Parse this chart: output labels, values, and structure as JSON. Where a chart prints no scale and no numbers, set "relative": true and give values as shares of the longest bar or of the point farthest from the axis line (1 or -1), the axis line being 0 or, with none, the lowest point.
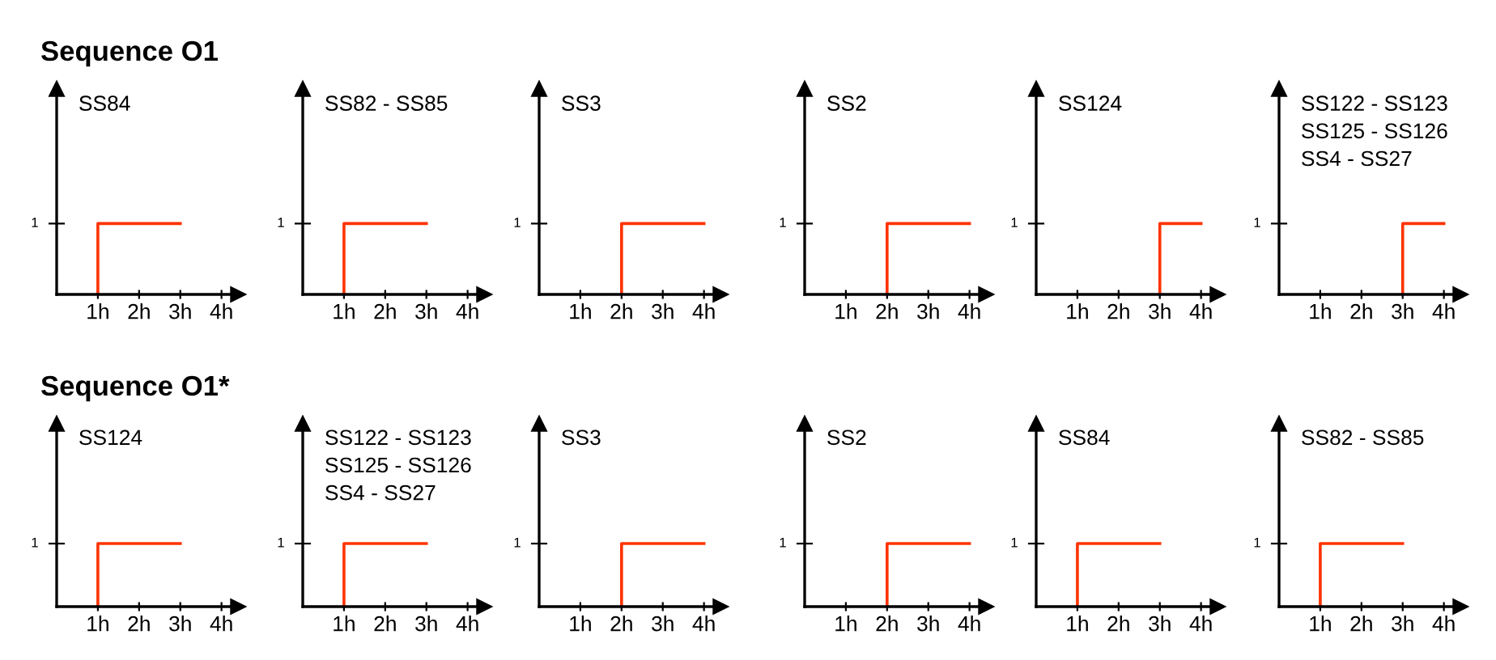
{
  "chart_data": [
    {
      "type": "line",
      "relative": true,
      "title": "SS84",
      "annotations": [
        "1",
        "Sequence O1"
      ],
      "xlim": [
        0,
        4.4
      ],
      "xticks": [
        {
          "value": 1,
          "label": "1h"
        },
        {
          "value": 2,
          "label": "2h"
        },
        {
          "value": 3,
          "label": "3h"
        },
        {
          "value": 4,
          "label": "4h"
        }
      ],
      "series": [
        {
          "color": "#ff3300",
          "x": [
            1,
            1,
            3
          ],
          "values": [
            0,
            1,
            1
          ]
        }
      ]
    },
    {
      "type": "line",
      "relative": true,
      "title": "SS82 - SS85",
      "annotations": [
        "1"
      ],
      "xlim": [
        0,
        4.4
      ],
      "xticks": [
        {
          "value": 1,
          "label": "1h"
        },
        {
          "value": 2,
          "label": "2h"
        },
        {
          "value": 3,
          "label": "3h"
        },
        {
          "value": 4,
          "label": "4h"
        }
      ],
      "series": [
        {
          "color": "#ff3300",
          "x": [
            1,
            1,
            3
          ],
          "values": [
            0,
            1,
            1
          ]
        }
      ]
    },
    {
      "type": "line",
      "relative": true,
      "title": "SS3",
      "annotations": [
        "1"
      ],
      "xlim": [
        0,
        4.4
      ],
      "xticks": [
        {
          "value": 1,
          "label": "1h"
        },
        {
          "value": 2,
          "label": "2h"
        },
        {
          "value": 3,
          "label": "3h"
        },
        {
          "value": 4,
          "label": "4h"
        }
      ],
      "series": [
        {
          "color": "#ff3300",
          "x": [
            2,
            2,
            4
          ],
          "values": [
            0,
            1,
            1
          ]
        }
      ]
    },
    {
      "type": "line",
      "relative": true,
      "title": "SS2",
      "annotations": [
        "1"
      ],
      "xlim": [
        0,
        4.4
      ],
      "xticks": [
        {
          "value": 1,
          "label": "1h"
        },
        {
          "value": 2,
          "label": "2h"
        },
        {
          "value": 3,
          "label": "3h"
        },
        {
          "value": 4,
          "label": "4h"
        }
      ],
      "series": [
        {
          "color": "#ff3300",
          "x": [
            2,
            2,
            4
          ],
          "values": [
            0,
            1,
            1
          ]
        }
      ]
    },
    {
      "type": "line",
      "relative": true,
      "title": "SS124",
      "annotations": [
        "1"
      ],
      "xlim": [
        0,
        4.4
      ],
      "xticks": [
        {
          "value": 1,
          "label": "1h"
        },
        {
          "value": 2,
          "label": "2h"
        },
        {
          "value": 3,
          "label": "3h"
        },
        {
          "value": 4,
          "label": "4h"
        }
      ],
      "series": [
        {
          "color": "#ff3300",
          "x": [
            3,
            3,
            4
          ],
          "values": [
            0,
            1,
            1
          ]
        }
      ]
    },
    {
      "type": "line",
      "relative": true,
      "title": "SS122 - SS123\nSS125 - SS126\nSS4 - SS27",
      "annotations": [
        "1"
      ],
      "xlim": [
        0,
        4.4
      ],
      "xticks": [
        {
          "value": 1,
          "label": "1h"
        },
        {
          "value": 2,
          "label": "2h"
        },
        {
          "value": 3,
          "label": "3h"
        },
        {
          "value": 4,
          "label": "4h"
        }
      ],
      "series": [
        {
          "color": "#ff3300",
          "x": [
            3,
            3,
            4
          ],
          "values": [
            0,
            1,
            1
          ]
        }
      ]
    },
    {
      "type": "line",
      "relative": true,
      "title": "SS124",
      "annotations": [
        "1",
        "Sequence O1*"
      ],
      "xlim": [
        0,
        4.4
      ],
      "xticks": [
        {
          "value": 1,
          "label": "1h"
        },
        {
          "value": 2,
          "label": "2h"
        },
        {
          "value": 3,
          "label": "3h"
        },
        {
          "value": 4,
          "label": "4h"
        }
      ],
      "series": [
        {
          "color": "#ff3300",
          "x": [
            1,
            1,
            3
          ],
          "values": [
            0,
            1,
            1
          ]
        }
      ]
    },
    {
      "type": "line",
      "relative": true,
      "title": "SS122 - SS123\nSS125 - SS126\nSS4 - SS27",
      "annotations": [
        "1"
      ],
      "xlim": [
        0,
        4.4
      ],
      "xticks": [
        {
          "value": 1,
          "label": "1h"
        },
        {
          "value": 2,
          "label": "2h"
        },
        {
          "value": 3,
          "label": "3h"
        },
        {
          "value": 4,
          "label": "4h"
        }
      ],
      "series": [
        {
          "color": "#ff3300",
          "x": [
            1,
            1,
            3
          ],
          "values": [
            0,
            1,
            1
          ]
        }
      ]
    },
    {
      "type": "line",
      "relative": true,
      "title": "SS3",
      "annotations": [
        "1"
      ],
      "xlim": [
        0,
        4.4
      ],
      "xticks": [
        {
          "value": 1,
          "label": "1h"
        },
        {
          "value": 2,
          "label": "2h"
        },
        {
          "value": 3,
          "label": "3h"
        },
        {
          "value": 4,
          "label": "4h"
        }
      ],
      "series": [
        {
          "color": "#ff3300",
          "x": [
            2,
            2,
            4
          ],
          "values": [
            0,
            1,
            1
          ]
        }
      ]
    },
    {
      "type": "line",
      "relative": true,
      "title": "SS2",
      "annotations": [
        "1"
      ],
      "xlim": [
        0,
        4.4
      ],
      "xticks": [
        {
          "value": 1,
          "label": "1h"
        },
        {
          "value": 2,
          "label": "2h"
        },
        {
          "value": 3,
          "label": "3h"
        },
        {
          "value": 4,
          "label": "4h"
        }
      ],
      "series": [
        {
          "color": "#ff3300",
          "x": [
            2,
            2,
            4
          ],
          "values": [
            0,
            1,
            1
          ]
        }
      ]
    },
    {
      "type": "line",
      "relative": true,
      "title": "SS84",
      "annotations": [
        "1"
      ],
      "xlim": [
        0,
        4.4
      ],
      "xticks": [
        {
          "value": 1,
          "label": "1h"
        },
        {
          "value": 2,
          "label": "2h"
        },
        {
          "value": 3,
          "label": "3h"
        },
        {
          "value": 4,
          "label": "4h"
        }
      ],
      "series": [
        {
          "color": "#ff3300",
          "x": [
            1,
            1,
            3
          ],
          "values": [
            0,
            1,
            1
          ]
        }
      ]
    },
    {
      "type": "line",
      "relative": true,
      "title": "SS82 - SS85",
      "annotations": [
        "1"
      ],
      "xlim": [
        0,
        4.4
      ],
      "xticks": [
        {
          "value": 1,
          "label": "1h"
        },
        {
          "value": 2,
          "label": "2h"
        },
        {
          "value": 3,
          "label": "3h"
        },
        {
          "value": 4,
          "label": "4h"
        }
      ],
      "series": [
        {
          "color": "#ff3300",
          "x": [
            1,
            1,
            3
          ],
          "values": [
            0,
            1,
            1
          ]
        }
      ]
    }
  ]
}
